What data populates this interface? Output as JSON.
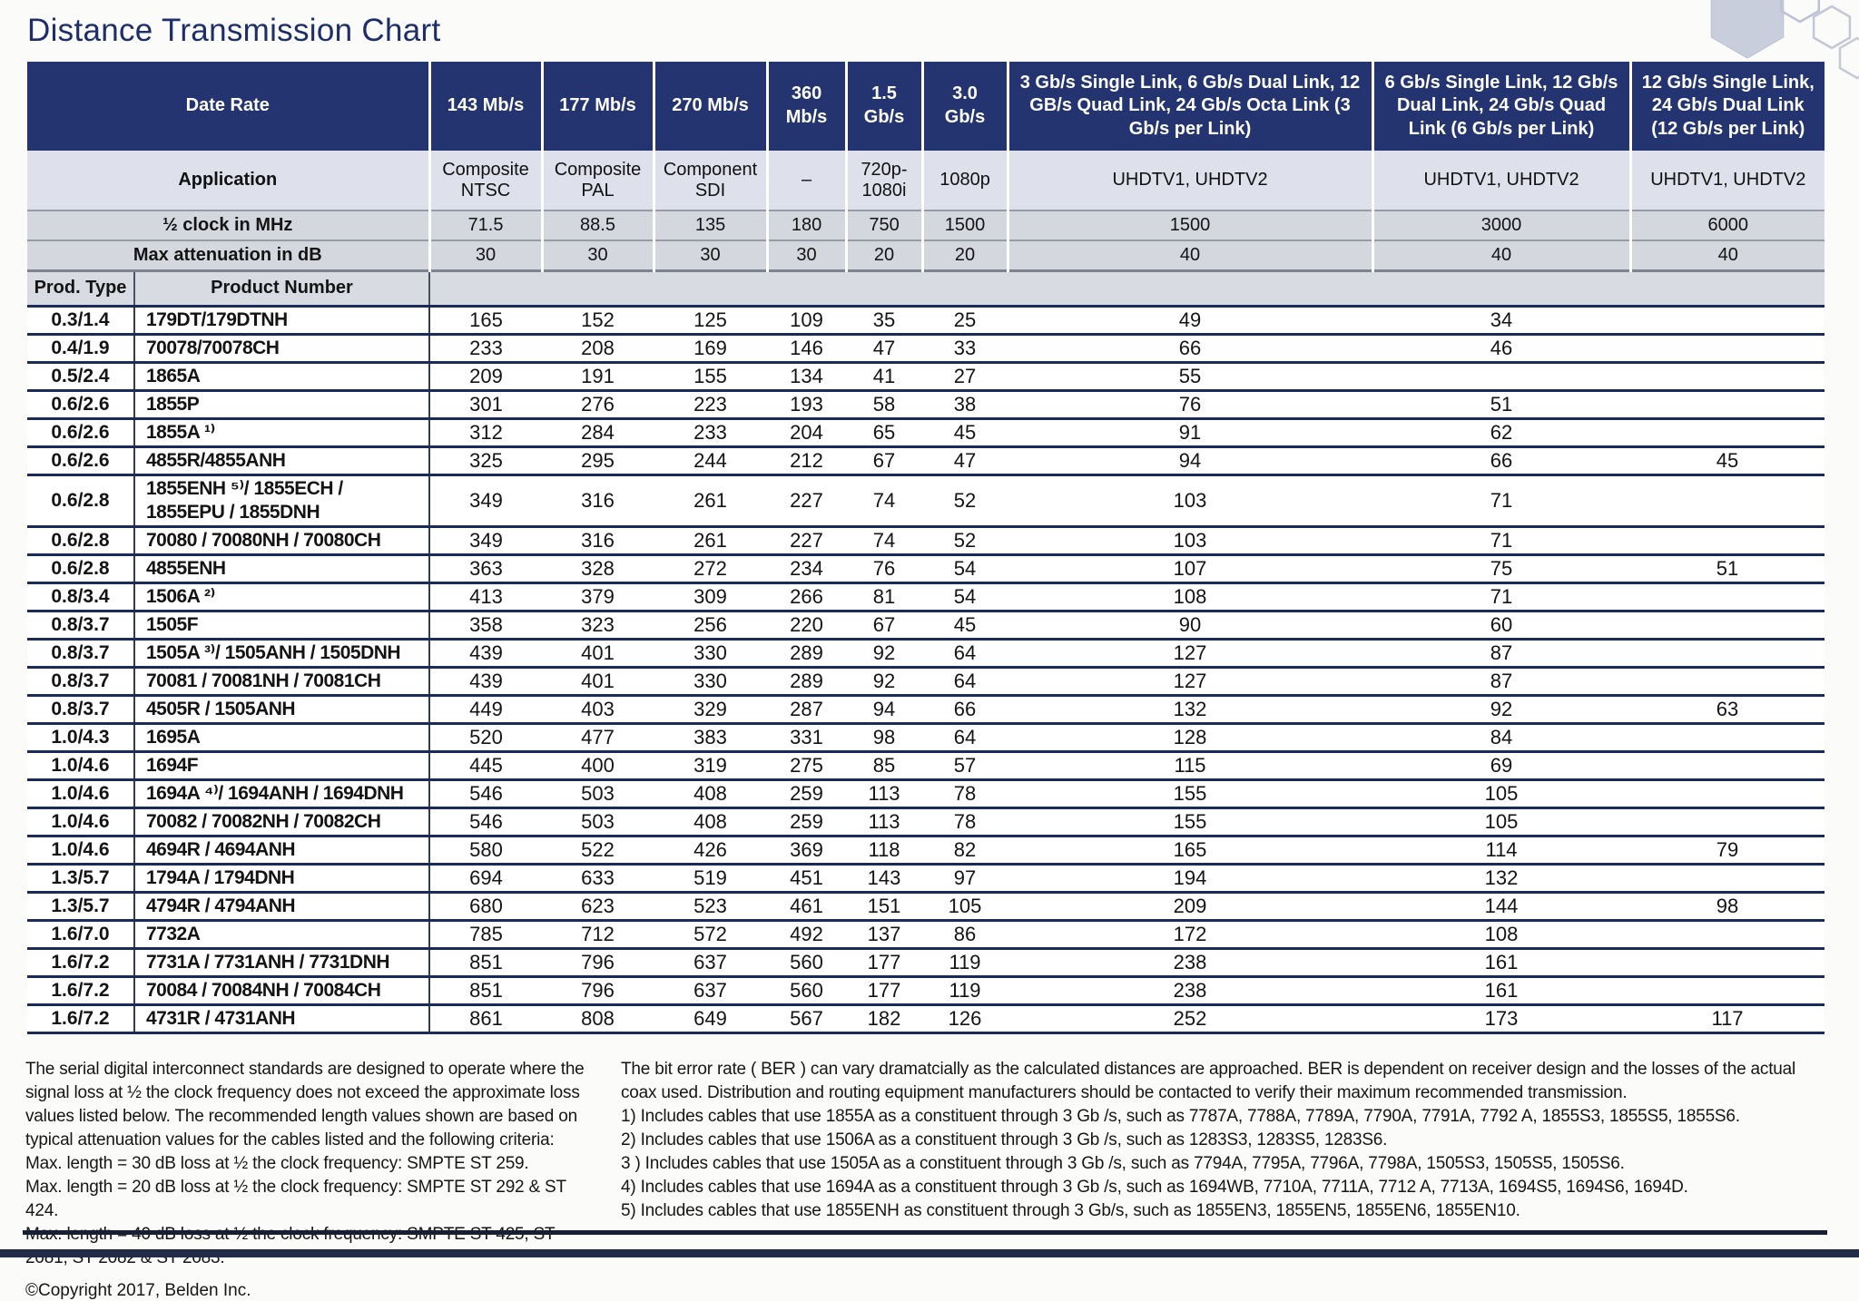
{
  "page": {
    "title": "Distance Transmission Chart",
    "copyright": "©Copyright 2017, Belden Inc."
  },
  "colors": {
    "header_navy": "#233471",
    "row_line_navy": "#1b2a5c",
    "light_row": "#dee0ec",
    "gray_row": "#d5d7de",
    "prod_row": "#d9dbe2",
    "title_navy": "#1d2e6b",
    "bottom_bar": "#232b49"
  },
  "table": {
    "labels": {
      "date_rate": "Date Rate",
      "application": "Application",
      "half_clock": "½ clock in MHz",
      "max_attenuation": "Max attenuation in dB",
      "prod_type": "Prod. Type",
      "product_number": "Product Number"
    },
    "columns": [
      {
        "rate": "143 Mb/s",
        "application": "Composite NTSC",
        "half_clock": "71.5",
        "max_attenuation": "30"
      },
      {
        "rate": "177 Mb/s",
        "application": "Composite PAL",
        "half_clock": "88.5",
        "max_attenuation": "30"
      },
      {
        "rate": "270 Mb/s",
        "application": "Component SDI",
        "half_clock": "135",
        "max_attenuation": "30"
      },
      {
        "rate": "360 Mb/s",
        "application": "–",
        "half_clock": "180",
        "max_attenuation": "30"
      },
      {
        "rate": "1.5 Gb/s",
        "application": "720p-1080i",
        "half_clock": "750",
        "max_attenuation": "20"
      },
      {
        "rate": "3.0 Gb/s",
        "application": "1080p",
        "half_clock": "1500",
        "max_attenuation": "20"
      },
      {
        "rate": "3 Gb/s Single Link, 6 Gb/s Dual Link, 12 GB/s Quad Link, 24 Gb/s Octa Link (3 Gb/s per Link)",
        "application": "UHDTV1, UHDTV2",
        "half_clock": "1500",
        "max_attenuation": "40"
      },
      {
        "rate": "6 Gb/s Single Link, 12 Gb/s Dual Link, 24 Gb/s Quad Link (6 Gb/s per Link)",
        "application": "UHDTV1, UHDTV2",
        "half_clock": "3000",
        "max_attenuation": "40"
      },
      {
        "rate": "12 Gb/s Single Link, 24 Gb/s Dual Link (12 Gb/s per Link)",
        "application": "UHDTV1, UHDTV2",
        "half_clock": "6000",
        "max_attenuation": "40"
      }
    ],
    "rows": [
      {
        "type": "0.3/1.4",
        "product": "179DT/179DTNH",
        "values": [
          "165",
          "152",
          "125",
          "109",
          "35",
          "25",
          "49",
          "34",
          ""
        ]
      },
      {
        "type": "0.4/1.9",
        "product": "70078/70078CH",
        "values": [
          "233",
          "208",
          "169",
          "146",
          "47",
          "33",
          "66",
          "46",
          ""
        ]
      },
      {
        "type": "0.5/2.4",
        "product": "1865A",
        "values": [
          "209",
          "191",
          "155",
          "134",
          "41",
          "27",
          "55",
          "",
          ""
        ]
      },
      {
        "type": "0.6/2.6",
        "product": "1855P",
        "values": [
          "301",
          "276",
          "223",
          "193",
          "58",
          "38",
          "76",
          "51",
          ""
        ]
      },
      {
        "type": "0.6/2.6",
        "product": "1855A ¹⁾",
        "values": [
          "312",
          "284",
          "233",
          "204",
          "65",
          "45",
          "91",
          "62",
          ""
        ]
      },
      {
        "type": "0.6/2.6",
        "product": "4855R/4855ANH",
        "values": [
          "325",
          "295",
          "244",
          "212",
          "67",
          "47",
          "94",
          "66",
          "45"
        ]
      },
      {
        "type": "0.6/2.8",
        "product": "1855ENH ⁵⁾/ 1855ECH / 1855EPU / 1855DNH",
        "values": [
          "349",
          "316",
          "261",
          "227",
          "74",
          "52",
          "103",
          "71",
          ""
        ]
      },
      {
        "type": "0.6/2.8",
        "product": "70080 / 70080NH / 70080CH",
        "values": [
          "349",
          "316",
          "261",
          "227",
          "74",
          "52",
          "103",
          "71",
          ""
        ]
      },
      {
        "type": "0.6/2.8",
        "product": "4855ENH",
        "values": [
          "363",
          "328",
          "272",
          "234",
          "76",
          "54",
          "107",
          "75",
          "51"
        ]
      },
      {
        "type": "0.8/3.4",
        "product": "1506A ²⁾",
        "values": [
          "413",
          "379",
          "309",
          "266",
          "81",
          "54",
          "108",
          "71",
          ""
        ]
      },
      {
        "type": "0.8/3.7",
        "product": "1505F",
        "values": [
          "358",
          "323",
          "256",
          "220",
          "67",
          "45",
          "90",
          "60",
          ""
        ]
      },
      {
        "type": "0.8/3.7",
        "product": "1505A ³⁾/ 1505ANH / 1505DNH",
        "values": [
          "439",
          "401",
          "330",
          "289",
          "92",
          "64",
          "127",
          "87",
          ""
        ]
      },
      {
        "type": "0.8/3.7",
        "product": "70081 / 70081NH / 70081CH",
        "values": [
          "439",
          "401",
          "330",
          "289",
          "92",
          "64",
          "127",
          "87",
          ""
        ]
      },
      {
        "type": "0.8/3.7",
        "product": "4505R / 1505ANH",
        "values": [
          "449",
          "403",
          "329",
          "287",
          "94",
          "66",
          "132",
          "92",
          "63"
        ]
      },
      {
        "type": "1.0/4.3",
        "product": "1695A",
        "values": [
          "520",
          "477",
          "383",
          "331",
          "98",
          "64",
          "128",
          "84",
          ""
        ]
      },
      {
        "type": "1.0/4.6",
        "product": "1694F",
        "values": [
          "445",
          "400",
          "319",
          "275",
          "85",
          "57",
          "115",
          "69",
          ""
        ]
      },
      {
        "type": "1.0/4.6",
        "product": "1694A ⁴⁾/ 1694ANH / 1694DNH",
        "values": [
          "546",
          "503",
          "408",
          "259",
          "113",
          "78",
          "155",
          "105",
          ""
        ]
      },
      {
        "type": "1.0/4.6",
        "product": "70082 / 70082NH / 70082CH",
        "values": [
          "546",
          "503",
          "408",
          "259",
          "113",
          "78",
          "155",
          "105",
          ""
        ]
      },
      {
        "type": "1.0/4.6",
        "product": "4694R / 4694ANH",
        "values": [
          "580",
          "522",
          "426",
          "369",
          "118",
          "82",
          "165",
          "114",
          "79"
        ]
      },
      {
        "type": "1.3/5.7",
        "product": "1794A / 1794DNH",
        "values": [
          "694",
          "633",
          "519",
          "451",
          "143",
          "97",
          "194",
          "132",
          ""
        ]
      },
      {
        "type": "1.3/5.7",
        "product": "4794R / 4794ANH",
        "values": [
          "680",
          "623",
          "523",
          "461",
          "151",
          "105",
          "209",
          "144",
          "98"
        ]
      },
      {
        "type": "1.6/7.0",
        "product": "7732A",
        "values": [
          "785",
          "712",
          "572",
          "492",
          "137",
          "86",
          "172",
          "108",
          ""
        ]
      },
      {
        "type": "1.6/7.2",
        "product": "7731A / 7731ANH / 7731DNH",
        "values": [
          "851",
          "796",
          "637",
          "560",
          "177",
          "119",
          "238",
          "161",
          ""
        ]
      },
      {
        "type": "1.6/7.2",
        "product": "70084 / 70084NH / 70084CH",
        "values": [
          "851",
          "796",
          "637",
          "560",
          "177",
          "119",
          "238",
          "161",
          ""
        ]
      },
      {
        "type": "1.6/7.2",
        "product": "4731R / 4731ANH",
        "values": [
          "861",
          "808",
          "649",
          "567",
          "182",
          "126",
          "252",
          "173",
          "117"
        ]
      }
    ]
  },
  "footnotes": {
    "left_intro": "The serial digital interconnect standards are designed to operate where the signal loss at ½ the clock frequency does not exceed the approximate loss values listed below. The recommended length values shown are based on typical attenuation values for the cables listed and the following criteria:",
    "left_lines": [
      "Max. length = 30 dB loss at ½ the clock frequency: SMPTE ST 259.",
      "Max. length = 20 dB loss at ½ the clock frequency: SMPTE ST 292 & ST 424.",
      "Max. length = 40 dB loss at ½ the clock frequency: SMPTE ST 425, ST 2081, ST 2082 & ST 2083."
    ],
    "right_intro": "The bit error rate ( BER ) can vary dramatcially as the calculated distances are approached. BER is dependent on receiver design and the losses of the actual coax used. Distribution and routing equipment manufacturers should be contacted to verify their maximum recommended transmission.",
    "right_notes": [
      "1) Includes cables that use 1855A as a constituent through 3 Gb /s, such as 7787A, 7788A, 7789A, 7790A, 7791A, 7792 A, 1855S3, 1855S5, 1855S6.",
      "2) Includes cables that use 1506A as a constituent through 3 Gb /s, such as 1283S3, 1283S5, 1283S6.",
      "3 ) Includes cables that use 1505A as a constituent through 3 Gb /s, such as 7794A, 7795A, 7796A, 7798A, 1505S3, 1505S5, 1505S6.",
      "4) Includes cables that use 1694A as a constituent through 3 Gb /s, such as 1694WB, 7710A, 7711A, 7712 A, 7713A, 1694S5, 1694S6, 1694D.",
      "5) Includes cables that use 1855ENH as constituent through 3 Gb/s, such as 1855EN3, 1855EN5, 1855EN6, 1855EN10."
    ]
  }
}
